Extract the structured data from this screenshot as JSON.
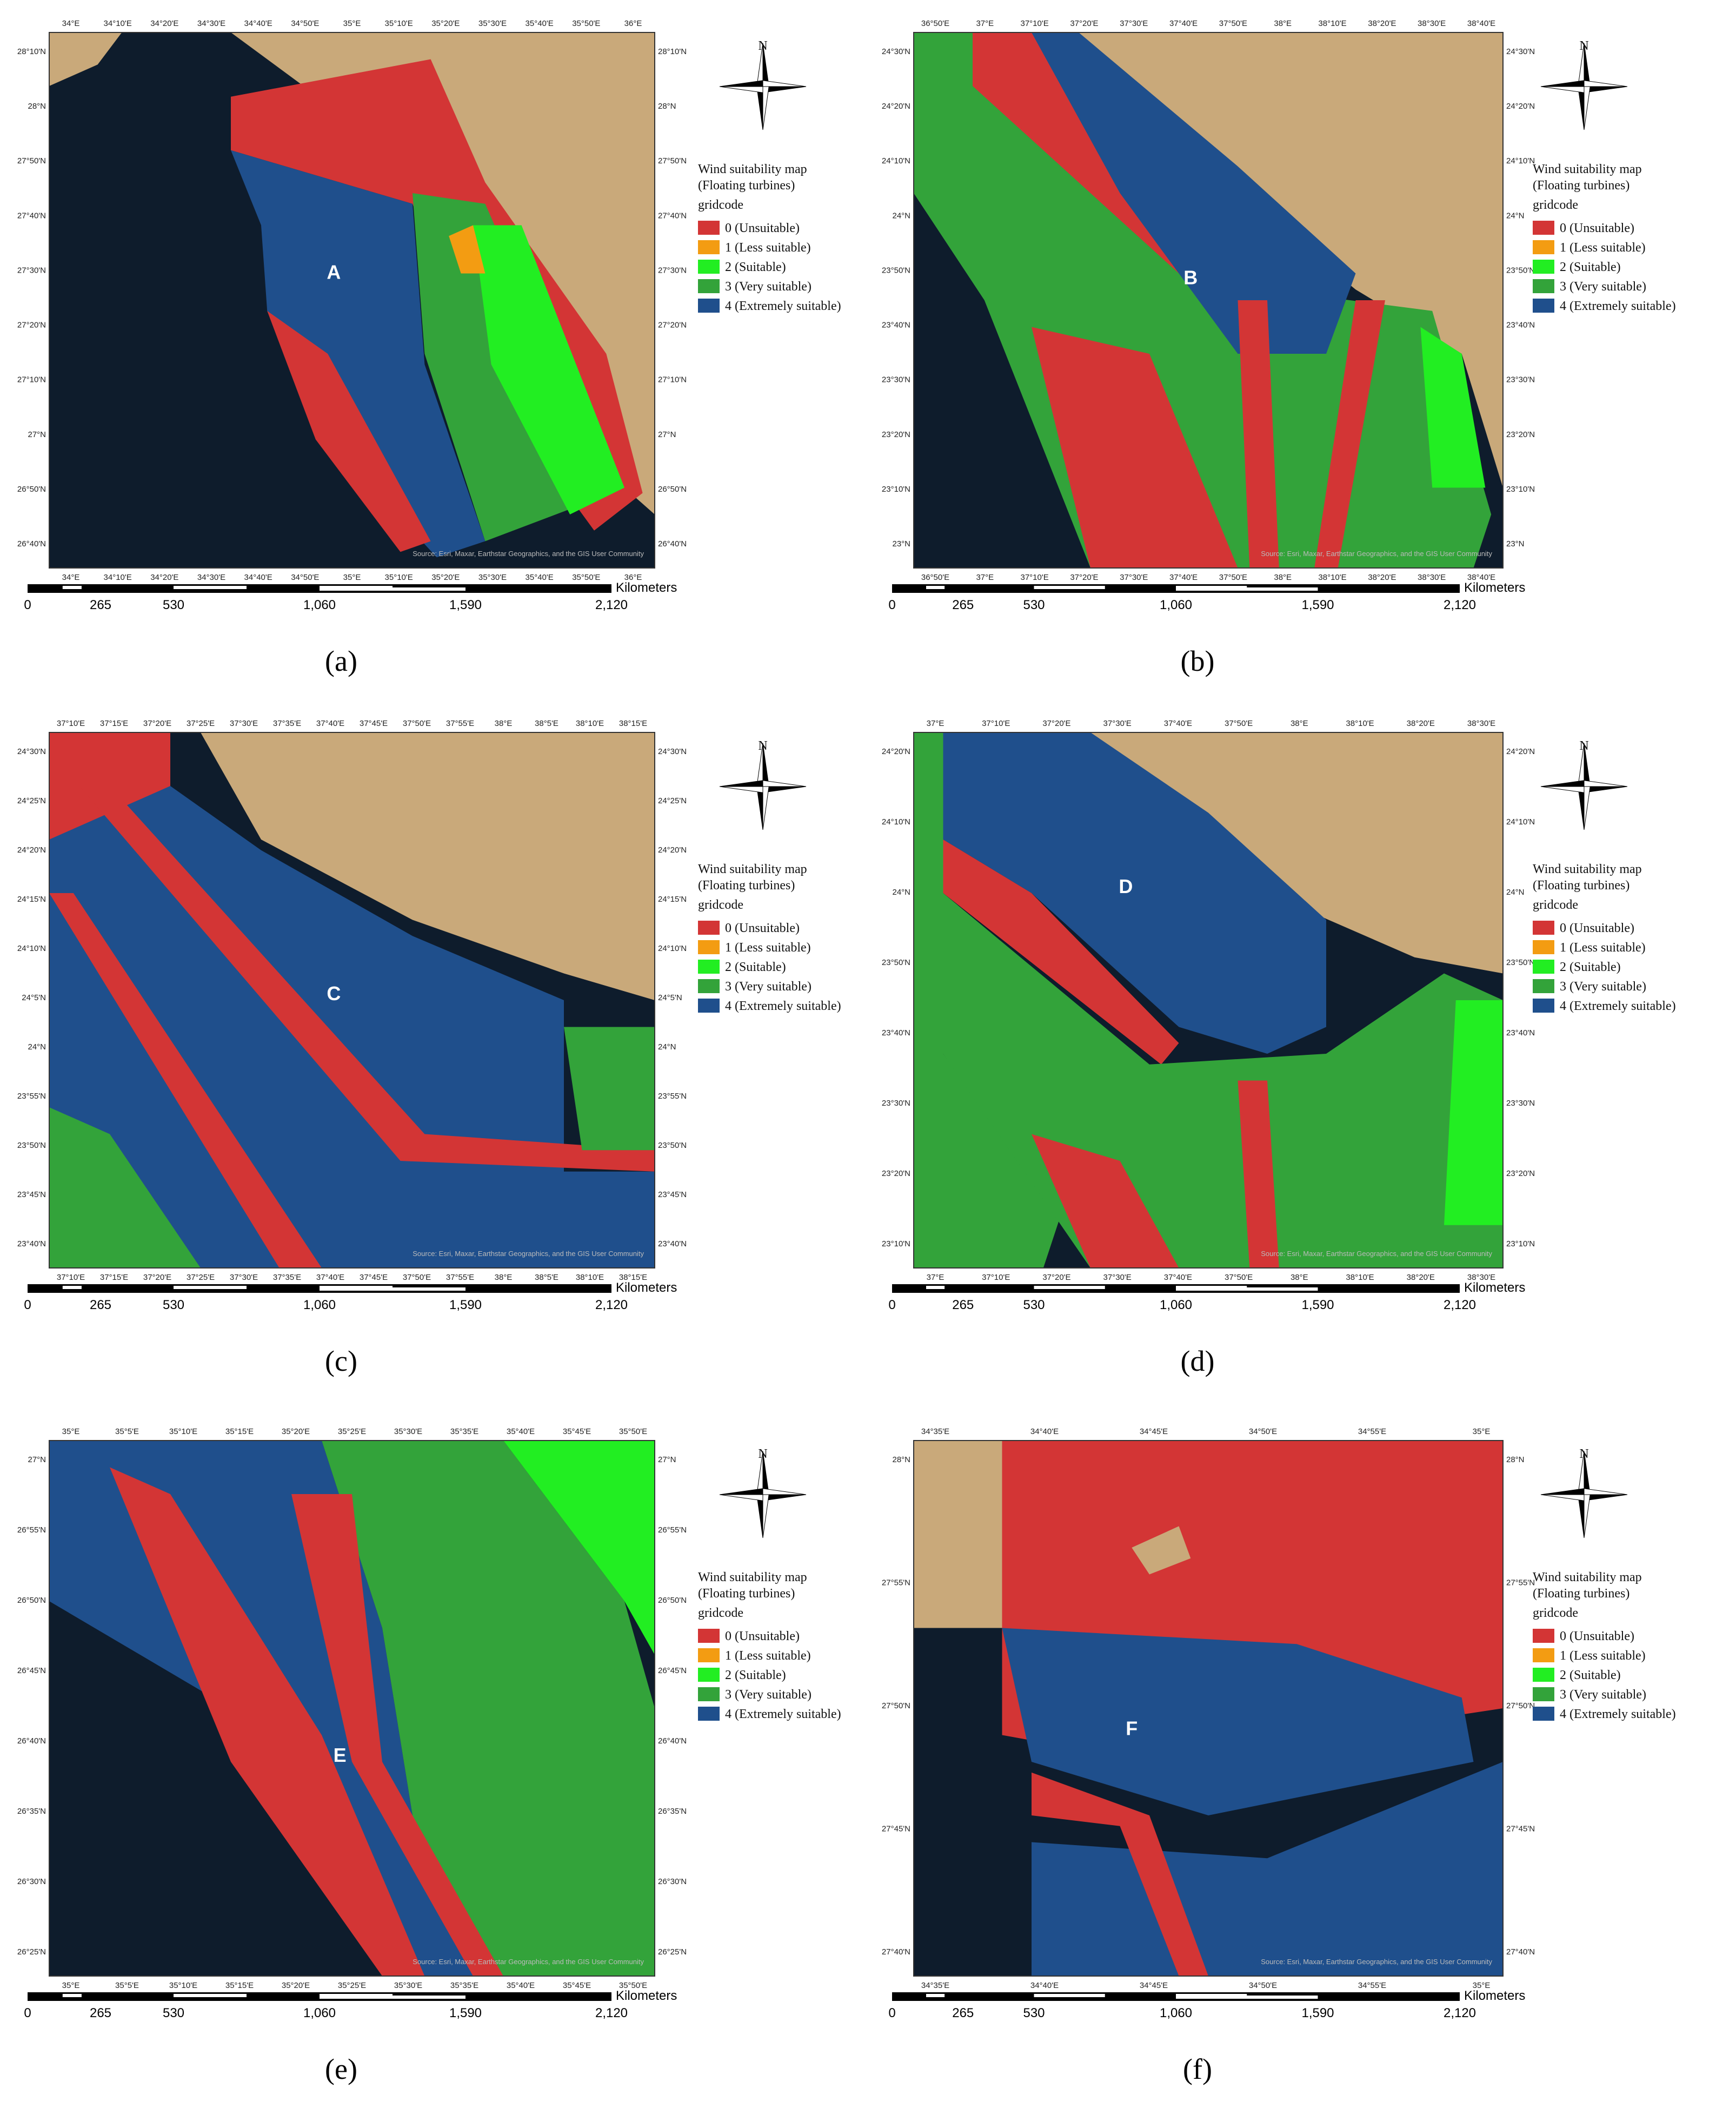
{
  "legend": {
    "title": "Wind suitability map",
    "subtitle": "(Floating turbines)",
    "field": "gridcode",
    "items": [
      {
        "label": "0 (Unsuitable)",
        "color": "#d33535"
      },
      {
        "label": "1 (Less suitable)",
        "color": "#f39c12"
      },
      {
        "label": "2 (Suitable)",
        "color": "#22ee22"
      },
      {
        "label": "3 (Very suitable)",
        "color": "#33a33a"
      },
      {
        "label": "4 (Extremely suitable)",
        "color": "#1f4f8c"
      }
    ]
  },
  "north": "N",
  "scale_unit": "Kilometers",
  "scale_labels": [
    "0",
    "265",
    "530",
    "1,060",
    "1,590",
    "2,120"
  ],
  "attribution": "Source: Esri, Maxar, Earthstar Geographics, and the GIS User Community",
  "panels": [
    {
      "label": "A",
      "caption": "(a)",
      "lon_ticks": [
        "34°E",
        "34°10'E",
        "34°20'E",
        "34°30'E",
        "34°40'E",
        "34°50'E",
        "35°E",
        "35°10'E",
        "35°20'E",
        "35°30'E",
        "35°40'E",
        "35°50'E",
        "36°E"
      ],
      "lat_ticks": [
        "28°10'N",
        "28°N",
        "27°50'N",
        "27°40'N",
        "27°30'N",
        "27°20'N",
        "27°10'N",
        "27°N",
        "26°50'N",
        "26°40'N"
      ]
    },
    {
      "label": "B",
      "caption": "(b)",
      "lon_ticks": [
        "36°50'E",
        "37°E",
        "37°10'E",
        "37°20'E",
        "37°30'E",
        "37°40'E",
        "37°50'E",
        "38°E",
        "38°10'E",
        "38°20'E",
        "38°30'E",
        "38°40'E"
      ],
      "lat_ticks": [
        "24°30'N",
        "24°20'N",
        "24°10'N",
        "24°N",
        "23°50'N",
        "23°40'N",
        "23°30'N",
        "23°20'N",
        "23°10'N",
        "23°N"
      ]
    },
    {
      "label": "C",
      "caption": "(c)",
      "lon_ticks": [
        "37°10'E",
        "37°15'E",
        "37°20'E",
        "37°25'E",
        "37°30'E",
        "37°35'E",
        "37°40'E",
        "37°45'E",
        "37°50'E",
        "37°55'E",
        "38°E",
        "38°5'E",
        "38°10'E",
        "38°15'E"
      ],
      "lat_ticks": [
        "24°30'N",
        "24°25'N",
        "24°20'N",
        "24°15'N",
        "24°10'N",
        "24°5'N",
        "24°N",
        "23°55'N",
        "23°50'N",
        "23°45'N",
        "23°40'N"
      ]
    },
    {
      "label": "D",
      "caption": "(d)",
      "lon_ticks": [
        "37°E",
        "37°10'E",
        "37°20'E",
        "37°30'E",
        "37°40'E",
        "37°50'E",
        "38°E",
        "38°10'E",
        "38°20'E",
        "38°30'E"
      ],
      "lat_ticks": [
        "24°20'N",
        "24°10'N",
        "24°N",
        "23°50'N",
        "23°40'N",
        "23°30'N",
        "23°20'N",
        "23°10'N"
      ]
    },
    {
      "label": "E",
      "caption": "(e)",
      "lon_ticks": [
        "35°E",
        "35°5'E",
        "35°10'E",
        "35°15'E",
        "35°20'E",
        "35°25'E",
        "35°30'E",
        "35°35'E",
        "35°40'E",
        "35°45'E",
        "35°50'E"
      ],
      "lat_ticks": [
        "27°N",
        "26°55'N",
        "26°50'N",
        "26°45'N",
        "26°40'N",
        "26°35'N",
        "26°30'N",
        "26°25'N"
      ]
    },
    {
      "label": "F",
      "caption": "(f)",
      "lon_ticks": [
        "34°35'E",
        "34°40'E",
        "34°45'E",
        "34°50'E",
        "34°55'E",
        "35°E"
      ],
      "lat_ticks": [
        "28°N",
        "27°55'N",
        "27°50'N",
        "27°45'N",
        "27°40'N"
      ]
    }
  ]
}
